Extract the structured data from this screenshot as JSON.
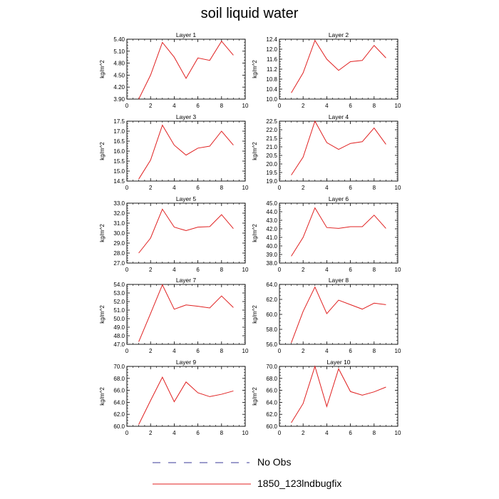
{
  "page_title": "soil liquid water",
  "legend": [
    {
      "label": "No Obs",
      "color": "#3a3a9a",
      "dash": true
    },
    {
      "label": "1850_123lndbugfix",
      "color": "#e02020",
      "dash": false
    }
  ],
  "chart_data": [
    {
      "type": "line",
      "title": "Layer 1",
      "ylabel": "kg/m^2",
      "xlim": [
        0,
        10
      ],
      "ylim": [
        3.9,
        5.4
      ],
      "xticks": [
        0,
        2,
        4,
        6,
        8,
        10
      ],
      "yticks": [
        "3.90",
        "4.20",
        "4.50",
        "4.80",
        "5.10",
        "5.40"
      ],
      "series": [
        {
          "color": "#e02020",
          "x": [
            1,
            2,
            3,
            4,
            5,
            6,
            7,
            8,
            9
          ],
          "y": [
            3.9,
            4.5,
            5.32,
            4.95,
            4.42,
            4.93,
            4.87,
            5.35,
            5.0
          ]
        }
      ]
    },
    {
      "type": "line",
      "title": "Layer 2",
      "ylabel": "kg/m^2",
      "xlim": [
        0,
        10
      ],
      "ylim": [
        10.0,
        12.4
      ],
      "xticks": [
        0,
        2,
        4,
        6,
        8,
        10
      ],
      "yticks": [
        "10.0",
        "10.4",
        "10.8",
        "11.2",
        "11.6",
        "12.0",
        "12.4"
      ],
      "series": [
        {
          "color": "#e02020",
          "x": [
            1,
            2,
            3,
            4,
            5,
            6,
            7,
            8,
            9
          ],
          "y": [
            10.25,
            11.05,
            12.35,
            11.6,
            11.15,
            11.5,
            11.55,
            12.15,
            11.65
          ]
        }
      ]
    },
    {
      "type": "line",
      "title": "Layer 3",
      "ylabel": "kg/m^2",
      "xlim": [
        0,
        10
      ],
      "ylim": [
        14.5,
        17.5
      ],
      "xticks": [
        0,
        2,
        4,
        6,
        8,
        10
      ],
      "yticks": [
        "14.5",
        "15.0",
        "15.5",
        "16.0",
        "16.5",
        "17.0",
        "17.5"
      ],
      "series": [
        {
          "color": "#e02020",
          "x": [
            1,
            2,
            3,
            4,
            5,
            6,
            7,
            8,
            9
          ],
          "y": [
            14.6,
            15.55,
            17.3,
            16.3,
            15.8,
            16.15,
            16.25,
            17.0,
            16.3
          ]
        }
      ]
    },
    {
      "type": "line",
      "title": "Layer 4",
      "ylabel": "kg/m^2",
      "xlim": [
        0,
        10
      ],
      "ylim": [
        19.0,
        22.5
      ],
      "xticks": [
        0,
        2,
        4,
        6,
        8,
        10
      ],
      "yticks": [
        "19.0",
        "19.5",
        "20.0",
        "20.5",
        "21.0",
        "21.5",
        "22.0",
        "22.5"
      ],
      "series": [
        {
          "color": "#e02020",
          "x": [
            1,
            2,
            3,
            4,
            5,
            6,
            7,
            8,
            9
          ],
          "y": [
            19.35,
            20.4,
            22.5,
            21.25,
            20.85,
            21.2,
            21.3,
            22.1,
            21.15
          ]
        }
      ]
    },
    {
      "type": "line",
      "title": "Layer 5",
      "ylabel": "kg/m^2",
      "xlim": [
        0,
        10
      ],
      "ylim": [
        27.0,
        33.0
      ],
      "xticks": [
        0,
        2,
        4,
        6,
        8,
        10
      ],
      "yticks": [
        "27.0",
        "28.0",
        "29.0",
        "30.0",
        "31.0",
        "32.0",
        "33.0"
      ],
      "series": [
        {
          "color": "#e02020",
          "x": [
            1,
            2,
            3,
            4,
            5,
            6,
            7,
            8,
            9
          ],
          "y": [
            28.0,
            29.5,
            32.4,
            30.6,
            30.25,
            30.6,
            30.65,
            31.85,
            30.45
          ]
        }
      ]
    },
    {
      "type": "line",
      "title": "Layer 6",
      "ylabel": "kg/m^2",
      "xlim": [
        0,
        10
      ],
      "ylim": [
        38.0,
        45.0
      ],
      "xticks": [
        0,
        2,
        4,
        6,
        8,
        10
      ],
      "yticks": [
        "38.0",
        "39.0",
        "40.0",
        "41.0",
        "42.0",
        "43.0",
        "44.0",
        "45.0"
      ],
      "series": [
        {
          "color": "#e02020",
          "x": [
            1,
            2,
            3,
            4,
            5,
            6,
            7,
            8,
            9
          ],
          "y": [
            38.8,
            41.0,
            44.45,
            42.15,
            42.05,
            42.25,
            42.25,
            43.6,
            42.05
          ]
        }
      ]
    },
    {
      "type": "line",
      "title": "Layer 7",
      "ylabel": "kg/m^2",
      "xlim": [
        0,
        10
      ],
      "ylim": [
        47.0,
        54.0
      ],
      "xticks": [
        0,
        2,
        4,
        6,
        8,
        10
      ],
      "yticks": [
        "47.0",
        "48.0",
        "49.0",
        "50.0",
        "51.0",
        "52.0",
        "53.0",
        "54.0"
      ],
      "series": [
        {
          "color": "#e02020",
          "x": [
            1,
            2,
            3,
            4,
            5,
            6,
            7,
            8,
            9
          ],
          "y": [
            47.3,
            50.6,
            53.95,
            51.1,
            51.6,
            51.45,
            51.25,
            52.65,
            51.3
          ]
        }
      ]
    },
    {
      "type": "line",
      "title": "Layer 8",
      "ylabel": "kg/m^2",
      "xlim": [
        0,
        10
      ],
      "ylim": [
        56.0,
        64.0
      ],
      "xticks": [
        0,
        2,
        4,
        6,
        8,
        10
      ],
      "yticks": [
        "56.0",
        "58.0",
        "60.0",
        "62.0",
        "64.0"
      ],
      "series": [
        {
          "color": "#e02020",
          "x": [
            1,
            2,
            3,
            4,
            5,
            6,
            7,
            8,
            9
          ],
          "y": [
            56.2,
            60.4,
            63.65,
            60.1,
            61.9,
            61.3,
            60.7,
            61.5,
            61.3
          ]
        }
      ]
    },
    {
      "type": "line",
      "title": "Layer 9",
      "ylabel": "kg/m^2",
      "xlim": [
        0,
        10
      ],
      "ylim": [
        60.0,
        70.0
      ],
      "xticks": [
        0,
        2,
        4,
        6,
        8,
        10
      ],
      "yticks": [
        "60.0",
        "62.0",
        "64.0",
        "66.0",
        "68.0",
        "70.0"
      ],
      "series": [
        {
          "color": "#e02020",
          "x": [
            1,
            2,
            3,
            4,
            5,
            6,
            7,
            8,
            9
          ],
          "y": [
            60.3,
            64.3,
            68.2,
            64.1,
            67.4,
            65.6,
            64.95,
            65.35,
            65.9
          ]
        }
      ]
    },
    {
      "type": "line",
      "title": "Layer 10",
      "ylabel": "kg/m^2",
      "xlim": [
        0,
        10
      ],
      "ylim": [
        60.0,
        70.0
      ],
      "xticks": [
        0,
        2,
        4,
        6,
        8,
        10
      ],
      "yticks": [
        "60.0",
        "62.0",
        "64.0",
        "66.0",
        "68.0",
        "70.0"
      ],
      "series": [
        {
          "color": "#e02020",
          "x": [
            1,
            2,
            3,
            4,
            5,
            6,
            7,
            8,
            9
          ],
          "y": [
            60.6,
            63.8,
            70.0,
            63.3,
            69.6,
            65.8,
            65.2,
            65.75,
            66.55
          ]
        }
      ]
    }
  ]
}
